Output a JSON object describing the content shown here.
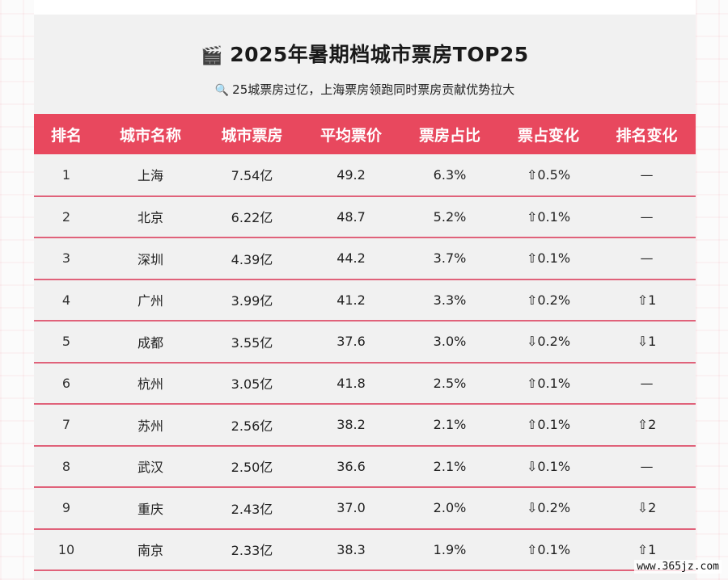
{
  "title": {
    "icon": "clapperboard-icon",
    "glyph": "🎬",
    "text": "2025年暑期档城市票房TOP25"
  },
  "subtitle": {
    "icon": "magnifier-icon",
    "glyph": "🔍",
    "text": "25城票房过亿，上海票房领跑同时票房贡献优势拉大"
  },
  "table": {
    "headers": [
      "排名",
      "城市名称",
      "城市票房",
      "平均票价",
      "票房占比",
      "票占变化",
      "排名变化"
    ],
    "rows": [
      [
        "1",
        "上海",
        "7.54亿",
        "49.2",
        "6.3%",
        "⇧0.5%",
        "—"
      ],
      [
        "2",
        "北京",
        "6.22亿",
        "48.7",
        "5.2%",
        "⇧0.1%",
        "—"
      ],
      [
        "3",
        "深圳",
        "4.39亿",
        "44.2",
        "3.7%",
        "⇧0.1%",
        "—"
      ],
      [
        "4",
        "广州",
        "3.99亿",
        "41.2",
        "3.3%",
        "⇧0.2%",
        "⇧1"
      ],
      [
        "5",
        "成都",
        "3.55亿",
        "37.6",
        "3.0%",
        "⇩0.2%",
        "⇩1"
      ],
      [
        "6",
        "杭州",
        "3.05亿",
        "41.8",
        "2.5%",
        "⇧0.1%",
        "—"
      ],
      [
        "7",
        "苏州",
        "2.56亿",
        "38.2",
        "2.1%",
        "⇧0.1%",
        "⇧2"
      ],
      [
        "8",
        "武汉",
        "2.50亿",
        "36.6",
        "2.1%",
        "⇩0.1%",
        "—"
      ],
      [
        "9",
        "重庆",
        "2.43亿",
        "37.0",
        "2.0%",
        "⇩0.2%",
        "⇩2"
      ],
      [
        "10",
        "南京",
        "2.33亿",
        "38.3",
        "1.9%",
        "⇧0.1%",
        "⇧1"
      ]
    ]
  },
  "watermark": "www.365jz.com",
  "colors": {
    "header_bg": "#e8485e",
    "row_divider": "#e0627a",
    "card_bg": "#f1f1f1"
  }
}
